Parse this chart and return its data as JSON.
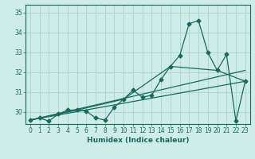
{
  "xlabel": "Humidex (Indice chaleur)",
  "bg_color": "#ceecea",
  "grid_color": "#afd8d4",
  "line_color": "#1a6b5a",
  "ylim": [
    29.4,
    35.4
  ],
  "xlim": [
    -0.5,
    23.5
  ],
  "yticks": [
    30,
    31,
    32,
    33,
    34,
    35
  ],
  "xticks": [
    0,
    1,
    2,
    3,
    4,
    5,
    6,
    7,
    8,
    9,
    10,
    11,
    12,
    13,
    14,
    15,
    16,
    17,
    18,
    19,
    20,
    21,
    22,
    23
  ],
  "series1_x": [
    0,
    1,
    2,
    3,
    4,
    5,
    6,
    7,
    8,
    9,
    10,
    11,
    12,
    13,
    14,
    15,
    16,
    17,
    18,
    19,
    20,
    21,
    22,
    23
  ],
  "series1_y": [
    29.6,
    29.7,
    29.55,
    29.9,
    30.1,
    30.1,
    30.05,
    29.7,
    29.6,
    30.25,
    30.65,
    31.1,
    30.75,
    30.85,
    31.65,
    32.3,
    32.85,
    34.45,
    34.6,
    33.0,
    32.1,
    32.9,
    29.55,
    31.55
  ],
  "series2_x": [
    0,
    23
  ],
  "series2_y": [
    29.6,
    31.55
  ],
  "series3_x": [
    0,
    5,
    10,
    15,
    20,
    23
  ],
  "series3_y": [
    29.6,
    30.1,
    30.65,
    32.3,
    32.1,
    31.55
  ],
  "series4_x": [
    0,
    23
  ],
  "series4_y": [
    29.6,
    32.1
  ]
}
